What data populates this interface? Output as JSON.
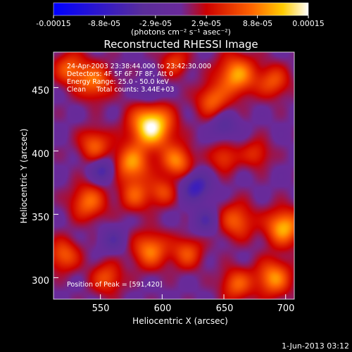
{
  "chart_data": {
    "type": "heatmap",
    "title": "Reconstructed RHESSI Image",
    "xlabel": "Heliocentric X (arcsec)",
    "ylabel": "Heliocentric Y (arcsec)",
    "xlim": [
      512,
      707
    ],
    "ylim": [
      283,
      478
    ],
    "xticks": [
      550,
      600,
      650,
      700
    ],
    "yticks": [
      300,
      350,
      400,
      450
    ],
    "colorbar": {
      "label": "(photons cm⁻² s⁻¹ asec⁻²)",
      "range": [
        -0.00015,
        0.00015
      ],
      "tick_labels": [
        "-0.00015",
        "-8.8e-05",
        "-2.9e-05",
        "2.9e-05",
        "8.8e-05",
        "0.00015"
      ],
      "colormap_stops": [
        "#0000ff",
        "#5a2d9a",
        "#6a2a9a",
        "#cc0000",
        "#ff6600",
        "#ffcc00",
        "#ffffff"
      ]
    },
    "annotations": [
      "24-Apr-2003 23:38:44.000 to 23:42:30.000",
      "Detectors: 4F 5F 6F 7F 8F, Att 0",
      "Energy Range: 25.0 - 50.0 keV",
      "Clean     Total counts: 3.44E+03",
      "Position of Peak = [591,420]"
    ],
    "peak": [
      591,
      420
    ],
    "sources": [
      {
        "x": 591,
        "y": 420,
        "v": 1.0,
        "s": 12
      },
      {
        "x": 575,
        "y": 390,
        "v": 0.65,
        "s": 10
      },
      {
        "x": 612,
        "y": 392,
        "v": 0.6,
        "s": 9
      },
      {
        "x": 578,
        "y": 365,
        "v": 0.45,
        "s": 9
      },
      {
        "x": 600,
        "y": 368,
        "v": 0.4,
        "s": 8
      },
      {
        "x": 660,
        "y": 460,
        "v": 0.7,
        "s": 11
      },
      {
        "x": 640,
        "y": 440,
        "v": 0.5,
        "s": 9
      },
      {
        "x": 690,
        "y": 455,
        "v": 0.45,
        "s": 9
      },
      {
        "x": 545,
        "y": 455,
        "v": 0.55,
        "s": 10
      },
      {
        "x": 525,
        "y": 465,
        "v": 0.5,
        "s": 9
      },
      {
        "x": 545,
        "y": 405,
        "v": 0.5,
        "s": 9
      },
      {
        "x": 540,
        "y": 360,
        "v": 0.55,
        "s": 10
      },
      {
        "x": 590,
        "y": 322,
        "v": 0.6,
        "s": 10
      },
      {
        "x": 620,
        "y": 320,
        "v": 0.45,
        "s": 9
      },
      {
        "x": 660,
        "y": 345,
        "v": 0.5,
        "s": 10
      },
      {
        "x": 698,
        "y": 340,
        "v": 0.75,
        "s": 10
      },
      {
        "x": 690,
        "y": 300,
        "v": 0.65,
        "s": 10
      },
      {
        "x": 660,
        "y": 295,
        "v": 0.5,
        "s": 9
      },
      {
        "x": 555,
        "y": 300,
        "v": 0.45,
        "s": 9
      },
      {
        "x": 520,
        "y": 318,
        "v": 0.5,
        "s": 9
      },
      {
        "x": 650,
        "y": 395,
        "v": 0.4,
        "s": 8
      },
      {
        "x": 676,
        "y": 398,
        "v": 0.35,
        "s": 8
      },
      {
        "x": 610,
        "y": 470,
        "v": 0.4,
        "s": 8
      },
      {
        "x": 627,
        "y": 372,
        "v": -0.55,
        "s": 8
      },
      {
        "x": 552,
        "y": 385,
        "v": -0.45,
        "s": 7
      },
      {
        "x": 650,
        "y": 420,
        "v": -0.35,
        "s": 7
      },
      {
        "x": 635,
        "y": 345,
        "v": -0.35,
        "s": 7
      },
      {
        "x": 590,
        "y": 445,
        "v": -0.3,
        "s": 7
      },
      {
        "x": 560,
        "y": 330,
        "v": -0.3,
        "s": 7
      }
    ]
  },
  "footer": {
    "timestamp": "1-Jun-2013 03:12"
  }
}
